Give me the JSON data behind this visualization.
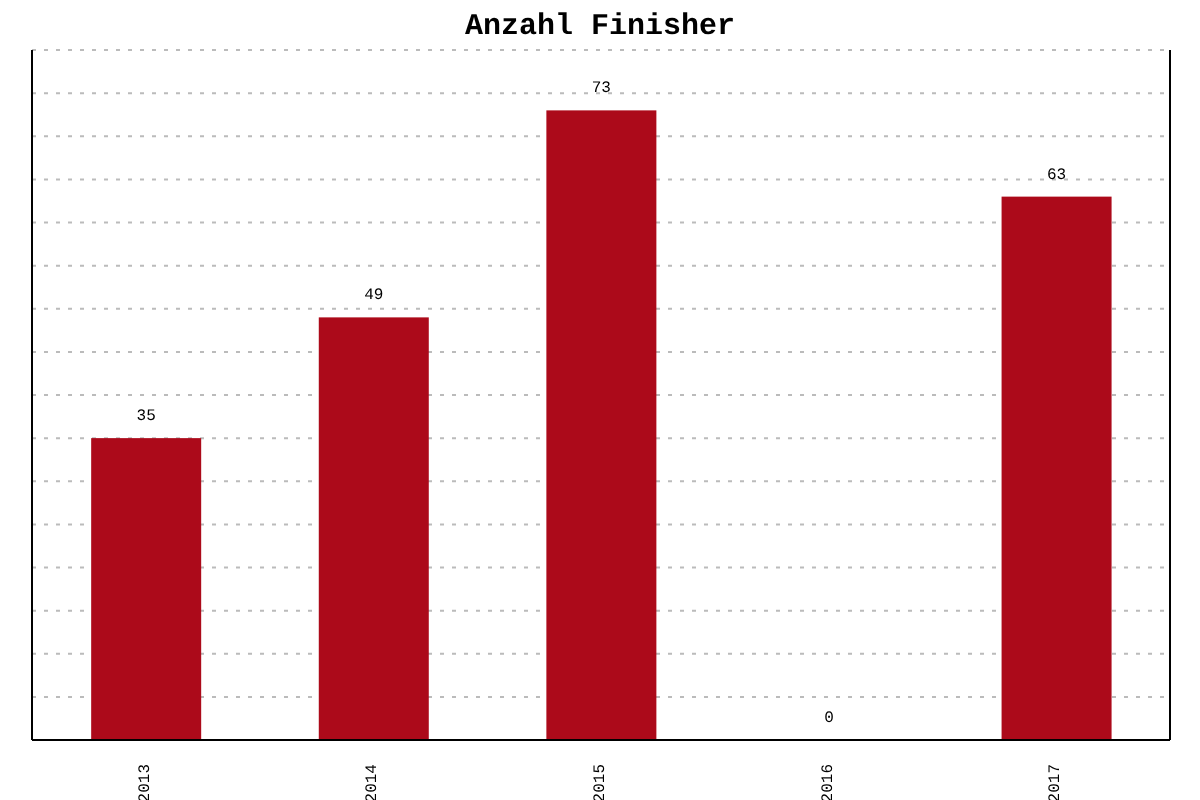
{
  "chart_data": {
    "type": "bar",
    "title": "Anzahl Finisher",
    "categories": [
      "2013",
      "2014",
      "2015",
      "2016",
      "2017"
    ],
    "values": [
      35,
      49,
      73,
      0,
      63
    ],
    "color": "#ac0a1a",
    "ylim": [
      0,
      80
    ],
    "yticks": [
      {
        "value": 0,
        "label": null
      },
      {
        "value": 5,
        "label": null
      },
      {
        "value": 10,
        "label": null
      },
      {
        "value": 15,
        "label": null
      },
      {
        "value": 20,
        "label": null
      },
      {
        "value": 25,
        "label": null
      },
      {
        "value": 30,
        "label": null
      },
      {
        "value": 35,
        "label": null
      },
      {
        "value": 40,
        "label": null
      },
      {
        "value": 45,
        "label": null
      },
      {
        "value": 50,
        "label": null
      },
      {
        "value": 55,
        "label": null
      },
      {
        "value": 60,
        "label": null
      },
      {
        "value": 65,
        "label": null
      },
      {
        "value": 70,
        "label": null
      },
      {
        "value": 75,
        "label": null
      },
      {
        "value": 80,
        "label": null
      }
    ],
    "grid": "y",
    "tick_labels": "x",
    "data_labels": true
  }
}
